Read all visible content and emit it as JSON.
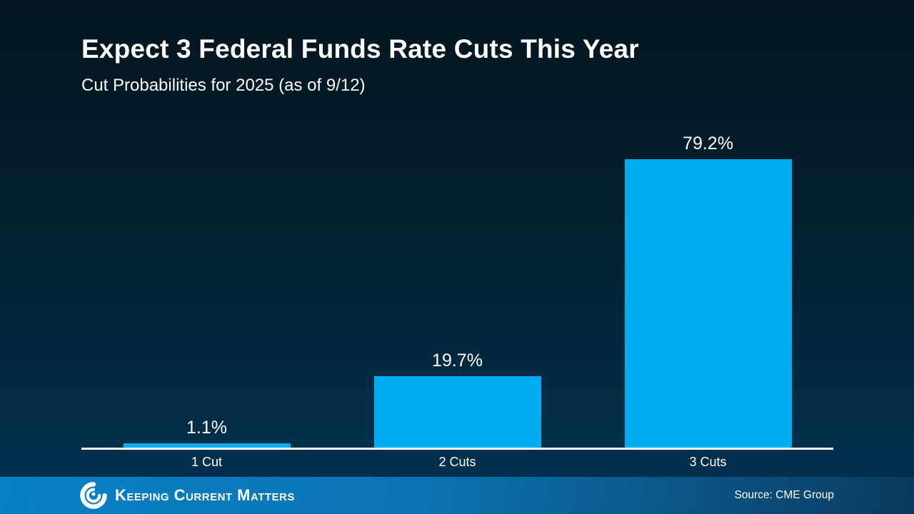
{
  "slide": {
    "title": "Expect 3 Federal Funds Rate Cuts This Year",
    "subtitle": "Cut Probabilities for 2025 (as of 9/12)"
  },
  "chart_data": {
    "type": "bar",
    "title": "Expect 3 Federal Funds Rate Cuts This Year",
    "subtitle": "Cut Probabilities for 2025 (as of 9/12)",
    "categories": [
      "1 Cut",
      "2 Cuts",
      "3 Cuts"
    ],
    "values": [
      1.1,
      19.7,
      79.2
    ],
    "value_labels": [
      "1.1%",
      "19.7%",
      "79.2%"
    ],
    "unit": "%",
    "ylim": [
      0,
      100
    ],
    "grid": false,
    "legend": "none",
    "bar_color": "#00aeef",
    "axis_line_color": "#ffffff",
    "label_color": "#ffffff"
  },
  "footer": {
    "brand": "Keeping Current Matters",
    "logo_icon": "kcm-spiral-icon",
    "source": "Source: CME Group"
  },
  "colors": {
    "background_top": "#021520",
    "background_bottom": "#013253",
    "footer_left": "#0681c5",
    "footer_right": "#093a5e",
    "text": "#ffffff"
  }
}
